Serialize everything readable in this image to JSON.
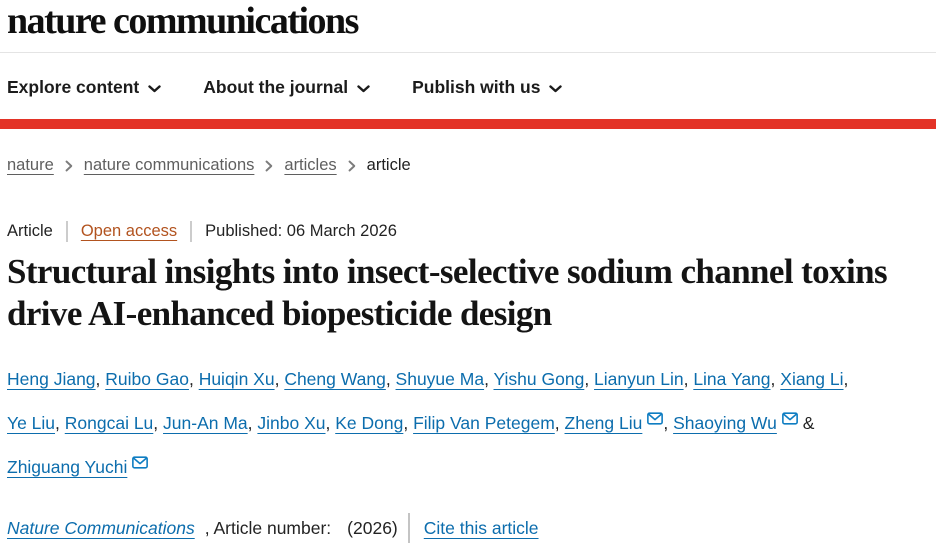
{
  "header": {
    "logo": "nature communications",
    "nav_items": [
      {
        "label": "Explore content"
      },
      {
        "label": "About the journal"
      },
      {
        "label": "Publish with us"
      }
    ]
  },
  "breadcrumb": [
    {
      "label": "nature",
      "current": false
    },
    {
      "label": "nature communications",
      "current": false
    },
    {
      "label": "articles",
      "current": false
    },
    {
      "label": "article",
      "current": true
    }
  ],
  "article": {
    "type_label": "Article",
    "access_label": "Open access",
    "published_label": "Published: 06 March 2026",
    "title": "Structural insights into insect-selective sodium channel toxins drive AI-enhanced biopesticide design",
    "authors": [
      {
        "name": "Heng Jiang"
      },
      {
        "name": "Ruibo Gao"
      },
      {
        "name": "Huiqin Xu"
      },
      {
        "name": "Cheng Wang"
      },
      {
        "name": "Shuyue Ma"
      },
      {
        "name": "Yishu Gong"
      },
      {
        "name": "Lianyun Lin"
      },
      {
        "name": "Lina Yang"
      },
      {
        "name": "Xiang Li",
        "break_after": true
      },
      {
        "name": "Ye Liu"
      },
      {
        "name": "Rongcai Lu"
      },
      {
        "name": "Jun-An Ma"
      },
      {
        "name": "Jinbo Xu"
      },
      {
        "name": "Ke Dong"
      },
      {
        "name": "Filip Van Petegem"
      },
      {
        "name": "Zheng Liu",
        "email": true
      },
      {
        "name": "Shaoying Wu",
        "email": true,
        "break_after": true
      },
      {
        "name": "Zhiguang Yuchi",
        "email": true
      }
    ],
    "journal": "Nature Communications",
    "article_number_label": ", Article number:",
    "article_number_value": "(2026)",
    "cite_label": "Cite this article"
  },
  "icons": {
    "nav_chevron": "chevron-down-icon",
    "breadcrumb_separator": "chevron-right-icon",
    "author_email": "envelope-icon"
  },
  "colors": {
    "brand_red": "#e33327",
    "link_blue": "#0c6dad",
    "envelope_blue": "#0f7dc2",
    "open_access_rust": "#b2531f",
    "breadcrumb_gray": "#5f5f5f",
    "text_dark": "#1c1c1c"
  }
}
